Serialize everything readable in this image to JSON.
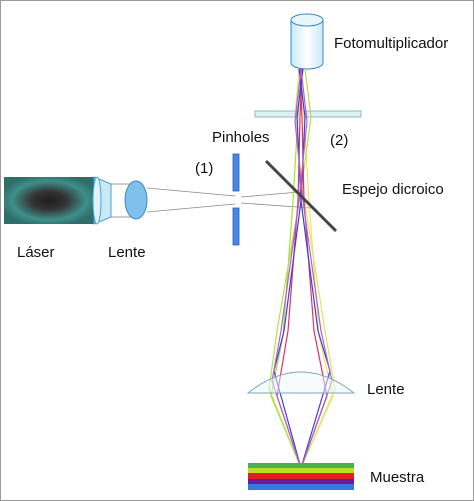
{
  "labels": {
    "photomultiplier": "Fotomultiplicador",
    "pinholes": "Pinholes",
    "pinhole_1": "(1)",
    "pinhole_2": "(2)",
    "dichroic_mirror": "Espejo dicroico",
    "laser": "Láser",
    "lens_left": "Lente",
    "lens_objective": "Lente",
    "sample": "Muestra"
  },
  "colors": {
    "outline": "#4a9fd6",
    "optic_fill": "#c9e9f5",
    "lens_fill": "#7fc1ea",
    "pinhole_fill": "#4a86e8",
    "mirror": "#454545",
    "beam_red": "#e0306a",
    "beam_blue": "#3f3fd0",
    "beam_green": "#a8e030",
    "beam_yellow": "#e8e860",
    "beam_purple": "#b060d0",
    "laser_dark": "#2a2a2a",
    "laser_mid": "#3f8f8a",
    "sample_layers": [
      "#4caf50",
      "#b6e020",
      "#e02020",
      "#6a1aa0",
      "#3a78e0"
    ]
  }
}
